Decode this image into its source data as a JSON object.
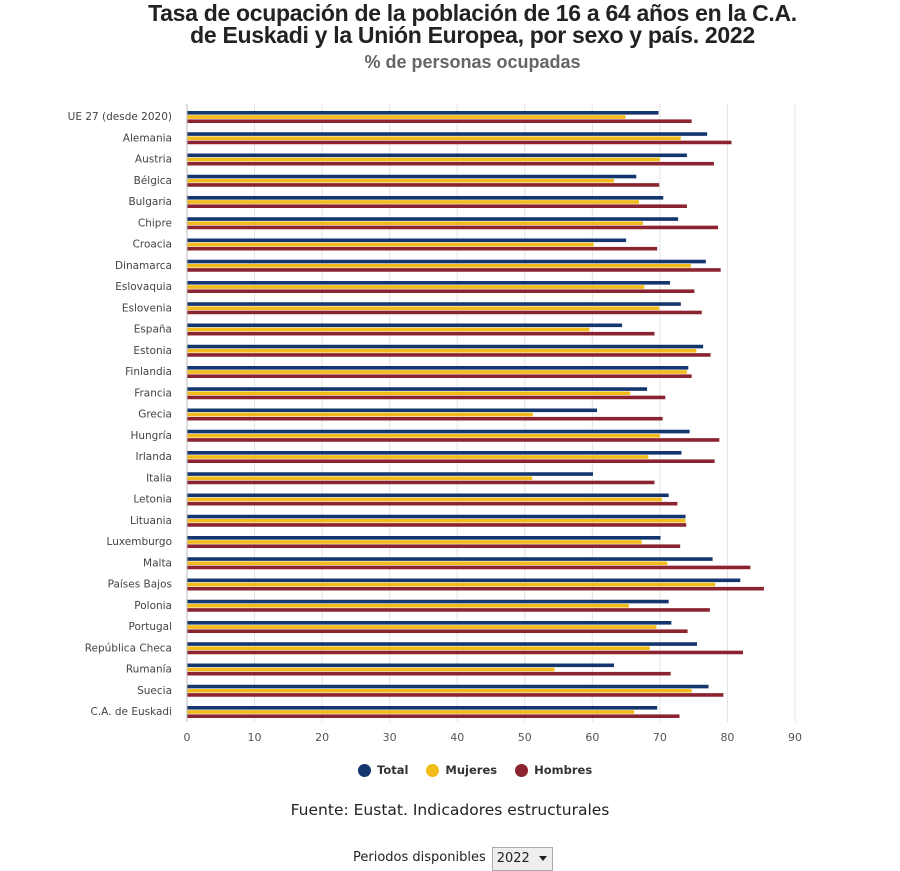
{
  "header": {
    "title_line1": "Tasa de ocupación de la población de 16 a 64 años en la C.A.",
    "title_line2": "de Euskadi y la Unión Europea, por sexo y país. 2022",
    "subtitle": "% de personas ocupadas"
  },
  "legend": {
    "items": [
      {
        "label": "Total",
        "color": "#14366e"
      },
      {
        "label": "Mujeres",
        "color": "#f2bb1a"
      },
      {
        "label": "Hombres",
        "color": "#8b2430"
      }
    ]
  },
  "footer": {
    "source": "Fuente: Eustat. Indicadores estructurales",
    "periods_label": "Periodos disponibles",
    "period_selected": "2022"
  },
  "chart_data": {
    "type": "bar",
    "orientation": "horizontal",
    "categories": [
      "UE 27 (desde 2020)",
      "Alemania",
      "Austria",
      "Bélgica",
      "Bulgaria",
      "Chipre",
      "Croacia",
      "Dinamarca",
      "Eslovaquia",
      "Eslovenia",
      "España",
      "Estonia",
      "Finlandia",
      "Francia",
      "Grecia",
      "Hungría",
      "Irlanda",
      "Italia",
      "Letonia",
      "Lituania",
      "Luxemburgo",
      "Malta",
      "Países Bajos",
      "Polonia",
      "Portugal",
      "República Checa",
      "Rumanía",
      "Suecia",
      "C.A. de Euskadi"
    ],
    "series": [
      {
        "name": "Total",
        "color": "#14366e",
        "values": [
          69.8,
          77.0,
          74.0,
          66.5,
          70.5,
          72.7,
          65.0,
          76.8,
          71.5,
          73.1,
          64.4,
          76.4,
          74.2,
          68.1,
          60.7,
          74.4,
          73.2,
          60.1,
          71.3,
          73.8,
          70.1,
          77.8,
          81.9,
          71.3,
          71.7,
          75.5,
          63.2,
          77.2,
          69.6
        ]
      },
      {
        "name": "Mujeres",
        "color": "#f2bb1a",
        "values": [
          64.9,
          73.1,
          70.0,
          63.2,
          66.9,
          67.5,
          60.2,
          74.6,
          67.7,
          69.9,
          59.6,
          75.4,
          74.0,
          65.6,
          51.2,
          70.0,
          68.3,
          51.1,
          70.3,
          73.8,
          67.3,
          71.1,
          78.2,
          65.4,
          69.5,
          68.5,
          54.4,
          74.7,
          66.2
        ]
      },
      {
        "name": "Hombres",
        "color": "#8b2430",
        "values": [
          74.7,
          80.6,
          78.0,
          69.9,
          74.0,
          78.6,
          69.6,
          79.0,
          75.1,
          76.2,
          69.2,
          77.5,
          74.7,
          70.8,
          70.4,
          78.8,
          78.1,
          69.2,
          72.6,
          73.9,
          73.0,
          83.4,
          85.4,
          77.4,
          74.1,
          82.3,
          71.6,
          79.4,
          72.9
        ]
      }
    ],
    "xlim": [
      0,
      90
    ],
    "xticks": [
      0,
      10,
      20,
      30,
      40,
      50,
      60,
      70,
      80,
      90
    ],
    "grid": true,
    "legend_position": "bottom"
  }
}
